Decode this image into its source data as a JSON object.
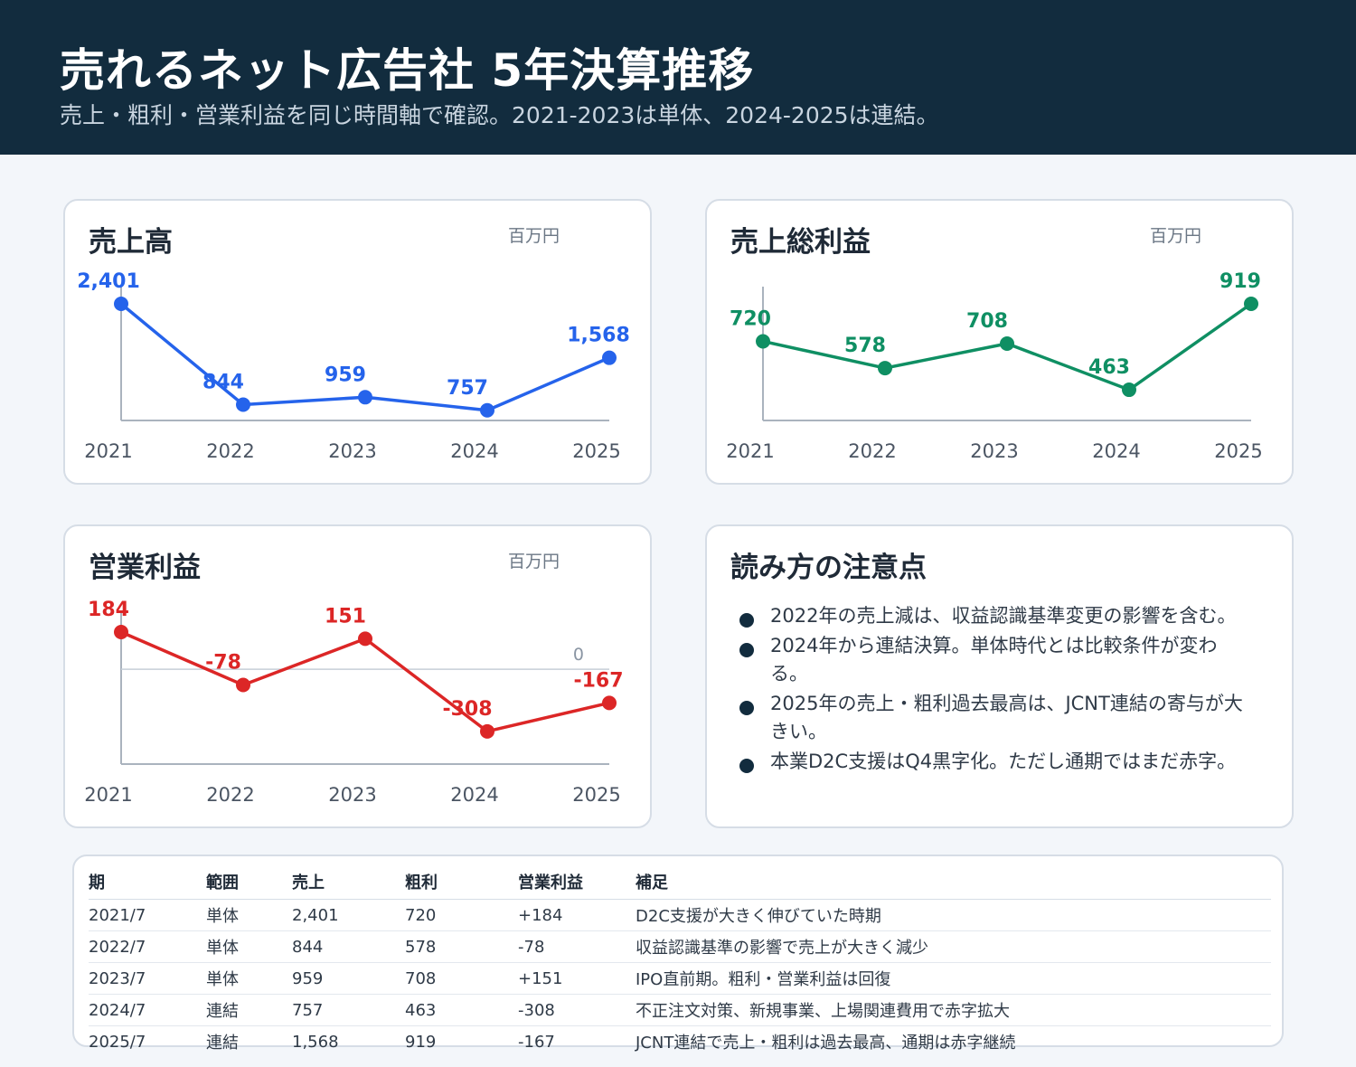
{
  "header": {
    "title": "売れるネット広告社 5年決算推移",
    "subtitle": "売上・粗利・営業利益を同じ時間軸で確認。2021-2023は単体、2024-2025は連結。"
  },
  "colors": {
    "revenue": "#2563eb",
    "gross_profit": "#0f8f63",
    "operating_profit": "#dc2626",
    "header_bg": "#122c3e"
  },
  "chart_data": [
    {
      "type": "line",
      "title": "売上高",
      "unit": "百万円",
      "x": [
        "2021",
        "2022",
        "2023",
        "2024",
        "2025"
      ],
      "values": [
        2401,
        844,
        959,
        757,
        1568
      ],
      "labels": [
        "2,401",
        "844",
        "959",
        "757",
        "1,568"
      ],
      "ylim": [
        600,
        2401
      ]
    },
    {
      "type": "line",
      "title": "売上総利益",
      "unit": "百万円",
      "x": [
        "2021",
        "2022",
        "2023",
        "2024",
        "2025"
      ],
      "values": [
        720,
        578,
        708,
        463,
        919
      ],
      "labels": [
        "720",
        "578",
        "708",
        "463",
        "919"
      ],
      "ylim": [
        300,
        919
      ]
    },
    {
      "type": "line",
      "title": "営業利益",
      "unit": "百万円",
      "x": [
        "2021",
        "2022",
        "2023",
        "2024",
        "2025"
      ],
      "values": [
        184,
        -78,
        151,
        -308,
        -167
      ],
      "labels": [
        "184",
        "-78",
        "151",
        "-308",
        "-167"
      ],
      "ylim": [
        -470,
        184
      ],
      "zero_line_label": "0"
    }
  ],
  "notes": {
    "title": "読み方の注意点",
    "items": [
      "2022年の売上減は、収益認識基準変更の影響を含む。",
      "2024年から連結決算。単体時代とは比較条件が変わる。",
      "2025年の売上・粗利過去最高は、JCNT連結の寄与が大きい。",
      "本業D2C支援はQ4黒字化。ただし通期ではまだ赤字。"
    ]
  },
  "table": {
    "headers": [
      "期",
      "範囲",
      "売上",
      "粗利",
      "営業利益",
      "補足"
    ],
    "rows": [
      [
        "2021/7",
        "単体",
        "2,401",
        "720",
        "+184",
        "D2C支援が大きく伸びていた時期"
      ],
      [
        "2022/7",
        "単体",
        "844",
        "578",
        "-78",
        "収益認識基準の影響で売上が大きく減少"
      ],
      [
        "2023/7",
        "単体",
        "959",
        "708",
        "+151",
        "IPO直前期。粗利・営業利益は回復"
      ],
      [
        "2024/7",
        "連結",
        "757",
        "463",
        "-308",
        "不正注文対策、新規事業、上場関連費用で赤字拡大"
      ],
      [
        "2025/7",
        "連結",
        "1,568",
        "919",
        "-167",
        "JCNT連結で売上・粗利は過去最高、通期は赤字継続"
      ]
    ]
  }
}
